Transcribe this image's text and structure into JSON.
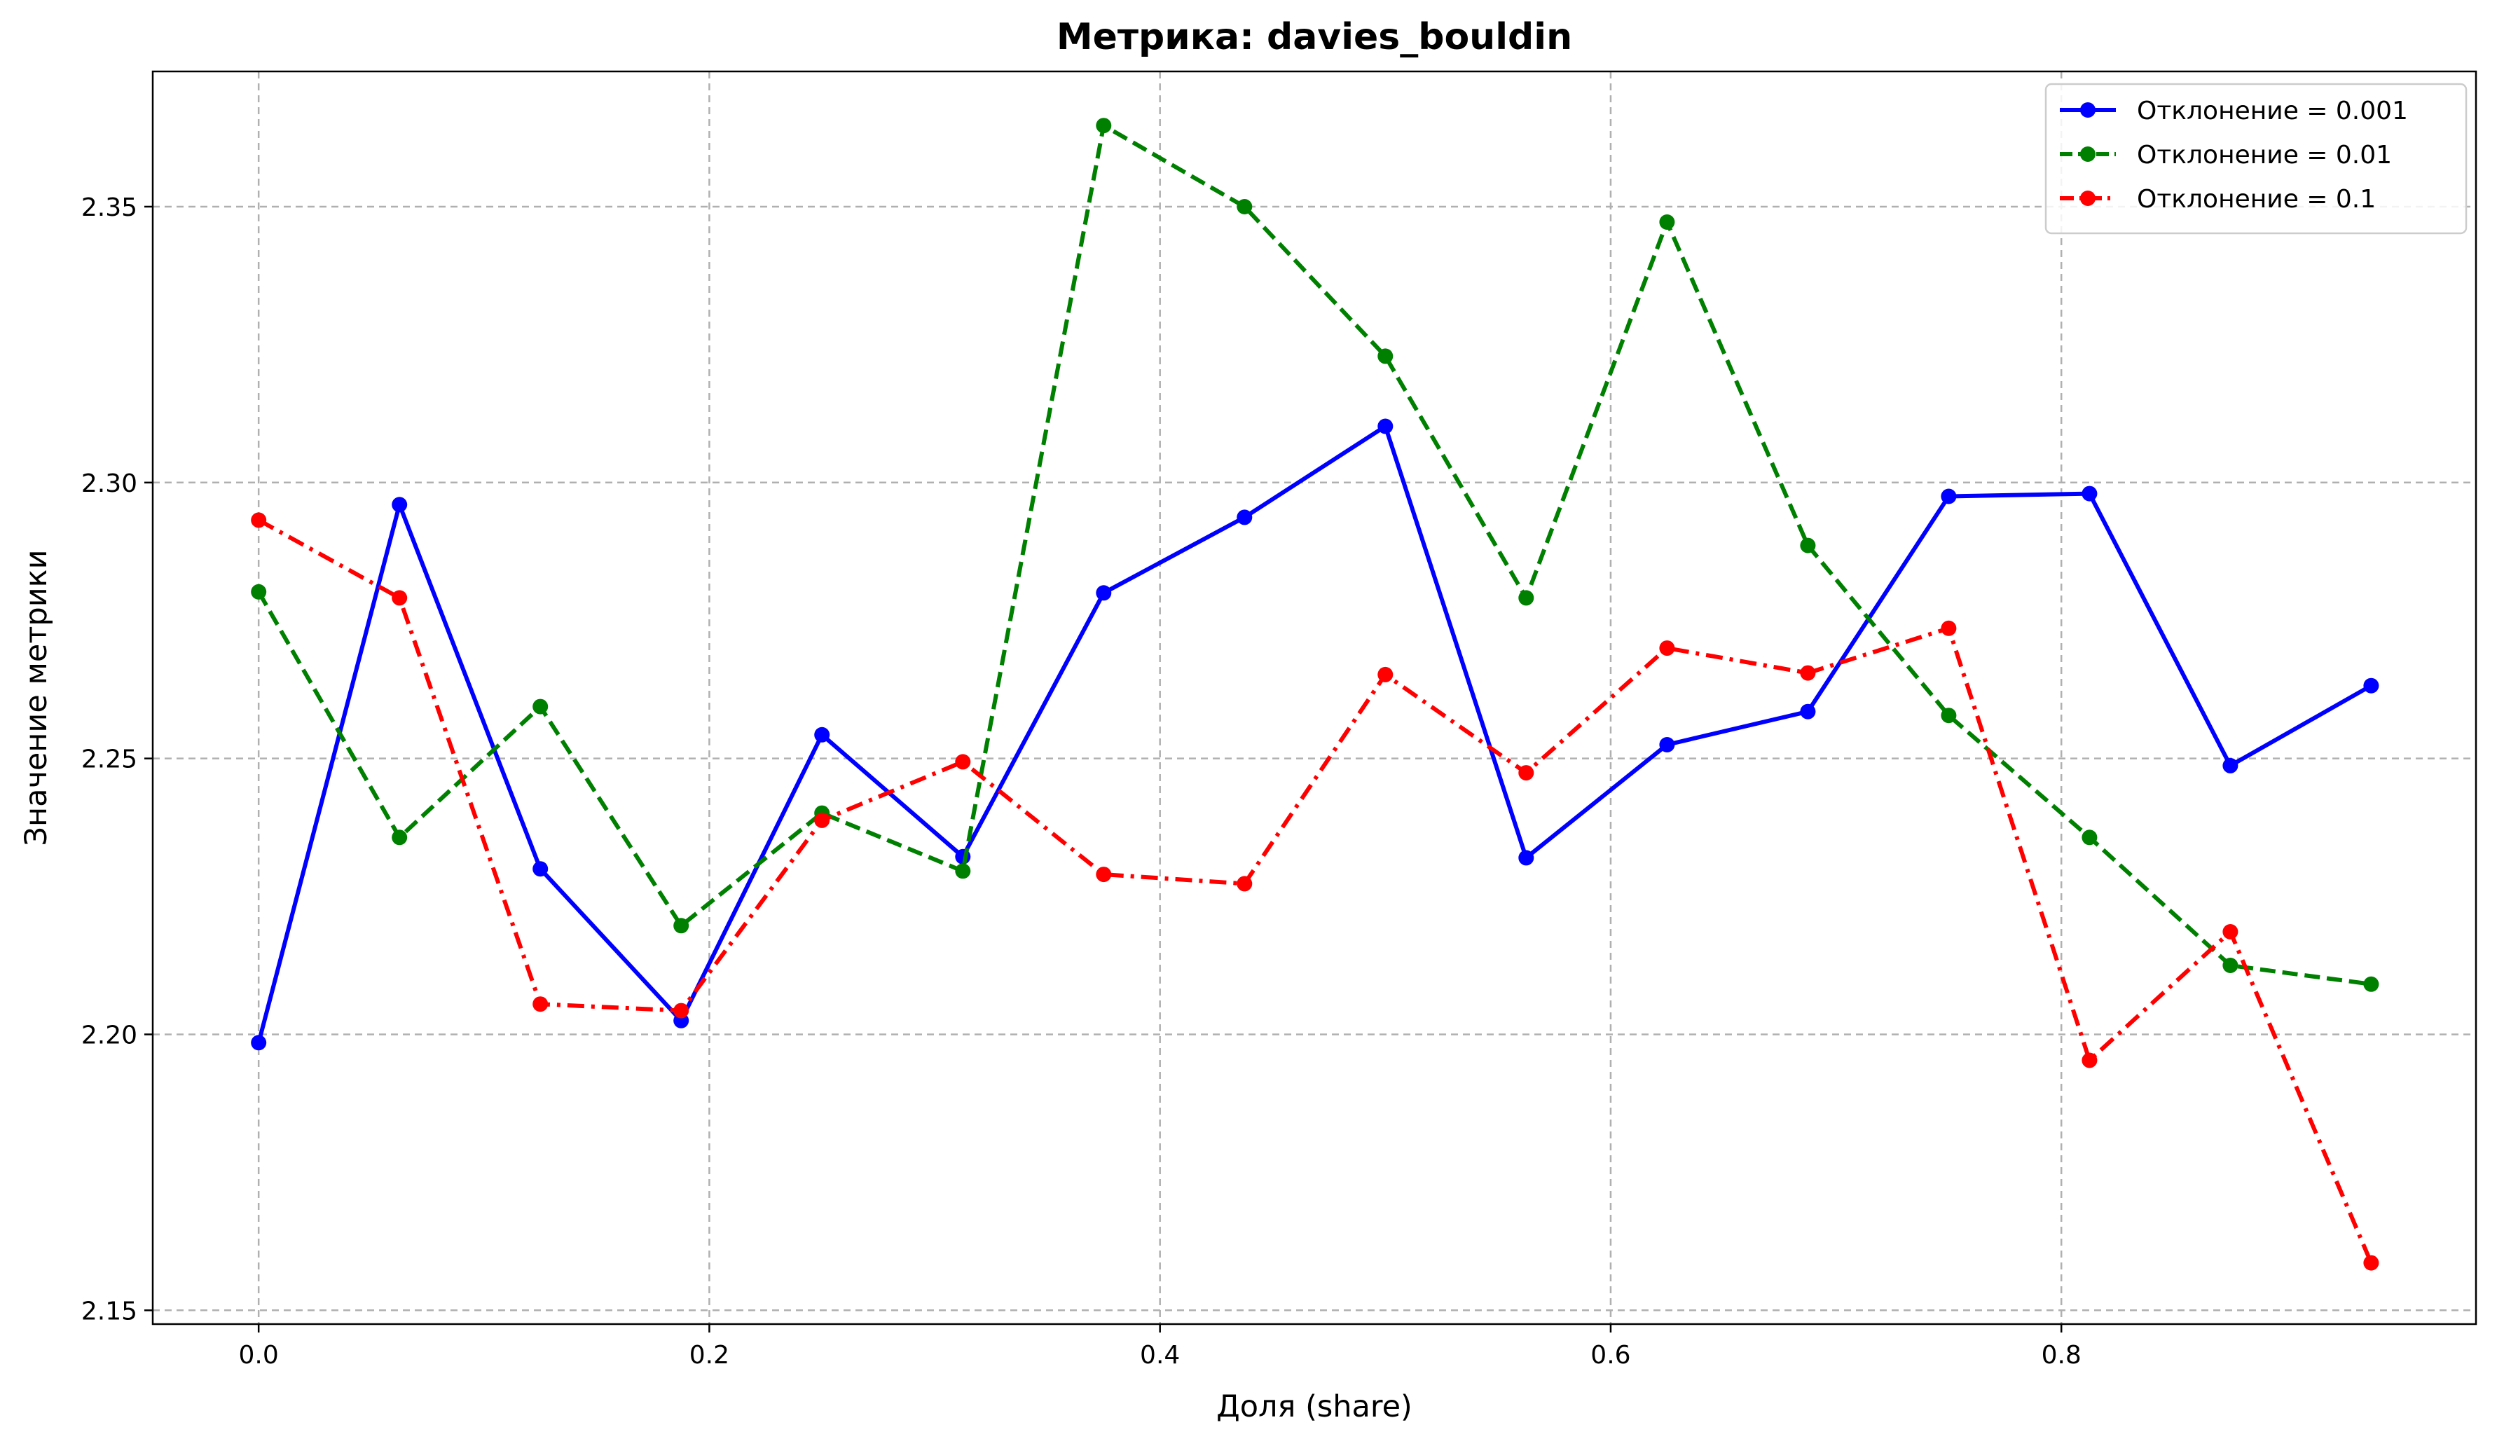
{
  "chart_data": {
    "type": "line",
    "title": "Метрика: davies_bouldin",
    "xlabel": "Доля (share)",
    "ylabel": "Значение метрики",
    "xlim": [
      -0.047,
      0.984
    ],
    "ylim": [
      2.1475,
      2.3745
    ],
    "x_ticks": [
      "0.0",
      "0.2",
      "0.4",
      "0.6",
      "0.8"
    ],
    "x_tick_values": [
      0.0,
      0.2,
      0.4,
      0.6,
      0.8
    ],
    "y_ticks": [
      "2.15",
      "2.20",
      "2.25",
      "2.30",
      "2.35"
    ],
    "y_tick_values": [
      2.15,
      2.2,
      2.25,
      2.3,
      2.35
    ],
    "grid": true,
    "legend_position": "top-right",
    "x": [
      0.0,
      0.0625,
      0.125,
      0.1875,
      0.25,
      0.3125,
      0.375,
      0.4375,
      0.5,
      0.5625,
      0.625,
      0.6875,
      0.75,
      0.8125,
      0.875,
      0.9375
    ],
    "series": [
      {
        "name": "Отклонение = 0.001",
        "color": "#0000ff",
        "linestyle": "solid",
        "values": [
          2.1985,
          2.296,
          2.23,
          2.2025,
          2.2543,
          2.2322,
          2.28,
          2.2937,
          2.3102,
          2.232,
          2.2525,
          2.2585,
          2.2975,
          2.298,
          2.2487,
          2.2632
        ]
      },
      {
        "name": "Отклонение = 0.01",
        "color": "#008000",
        "linestyle": "dashed",
        "values": [
          2.2802,
          2.2357,
          2.2594,
          2.2197,
          2.2401,
          2.2296,
          2.3647,
          2.35,
          2.3229,
          2.2791,
          2.3472,
          2.2886,
          2.2578,
          2.2357,
          2.2125,
          2.2091
        ]
      },
      {
        "name": "Отклонение = 0.1",
        "color": "#ff0000",
        "linestyle": "dashdot",
        "values": [
          2.2932,
          2.2791,
          2.2055,
          2.2043,
          2.2388,
          2.2494,
          2.229,
          2.2273,
          2.2652,
          2.2474,
          2.27,
          2.2655,
          2.2736,
          2.1953,
          2.2186,
          2.1586
        ]
      }
    ]
  }
}
